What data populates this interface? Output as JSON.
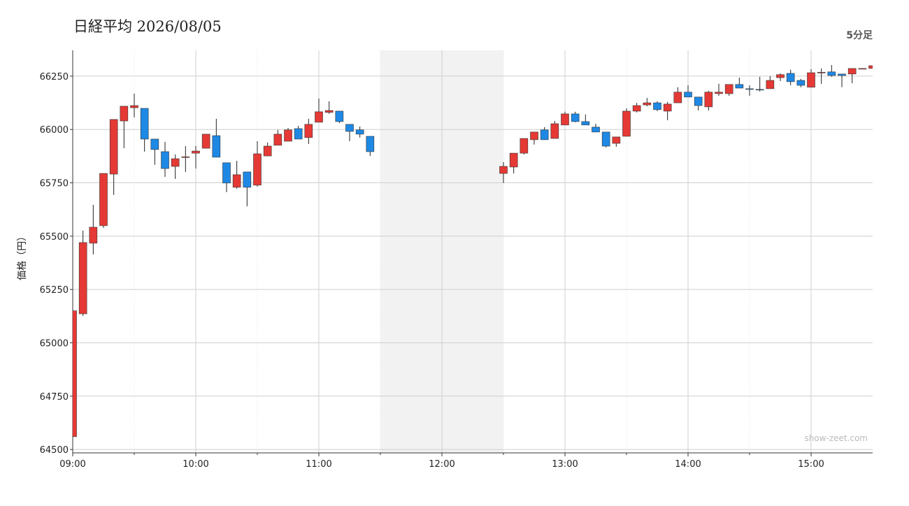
{
  "chart_data": {
    "type": "candlestick",
    "title": "日経平均 2026/08/05",
    "subtitle": "5分足",
    "y_label": "価格（円）",
    "watermark": "show-zeet.com",
    "x": [
      "09:00",
      "09:05",
      "09:10",
      "09:15",
      "09:20",
      "09:25",
      "09:30",
      "09:35",
      "09:40",
      "09:45",
      "09:50",
      "09:55",
      "10:00",
      "10:05",
      "10:10",
      "10:15",
      "10:20",
      "10:25",
      "10:30",
      "10:35",
      "10:40",
      "10:45",
      "10:50",
      "10:55",
      "11:00",
      "11:05",
      "11:10",
      "11:15",
      "11:20",
      "11:25",
      "12:30",
      "12:35",
      "12:40",
      "12:45",
      "12:50",
      "12:55",
      "13:00",
      "13:05",
      "13:10",
      "13:15",
      "13:20",
      "13:25",
      "13:30",
      "13:35",
      "13:40",
      "13:45",
      "13:50",
      "13:55",
      "14:00",
      "14:05",
      "14:10",
      "14:15",
      "14:20",
      "14:25",
      "14:30",
      "14:35",
      "14:40",
      "14:45",
      "14:50",
      "14:55",
      "15:00",
      "15:05",
      "15:10",
      "15:15",
      "15:20",
      "15:25",
      "15:30"
    ],
    "open": [
      64560,
      65136,
      65467,
      65549,
      65791,
      66040,
      66102,
      66099,
      65955,
      65896,
      65827,
      65870,
      65889,
      65912,
      65971,
      65844,
      65729,
      65801,
      65739,
      65876,
      65926,
      65945,
      66004,
      65962,
      66034,
      66080,
      66086,
      66024,
      65998,
      65968,
      65794,
      65824,
      65889,
      65952,
      65998,
      65958,
      66021,
      66073,
      66037,
      66011,
      65988,
      65935,
      65968,
      66086,
      66115,
      66125,
      66086,
      66125,
      66175,
      66152,
      66106,
      66168,
      66168,
      66211,
      66191,
      66188,
      66191,
      66243,
      66263,
      66230,
      66198,
      66266,
      66270,
      66260,
      66260,
      66285,
      66286
    ],
    "high": [
      65150,
      65526,
      65647,
      65794,
      66047,
      66109,
      66168,
      66099,
      65955,
      65942,
      65883,
      65922,
      65922,
      65978,
      66050,
      65844,
      65853,
      65801,
      65945,
      65939,
      65998,
      66007,
      66017,
      66050,
      66145,
      66132,
      66086,
      66024,
      66014,
      65968,
      65847,
      65889,
      65958,
      65988,
      66011,
      66040,
      66083,
      66083,
      66070,
      66027,
      65988,
      65965,
      66099,
      66125,
      66148,
      66132,
      66129,
      66198,
      66207,
      66152,
      66181,
      66214,
      66211,
      66243,
      66207,
      66247,
      66250,
      66263,
      66280,
      66237,
      66283,
      66286,
      66302,
      66260,
      66286,
      66287,
      66299
    ],
    "low": [
      64560,
      65126,
      65414,
      65539,
      65693,
      65912,
      66057,
      65896,
      65834,
      65778,
      65768,
      65801,
      65817,
      65912,
      65870,
      65706,
      65722,
      65640,
      65732,
      65876,
      65926,
      65945,
      65955,
      65932,
      66034,
      66073,
      66030,
      65945,
      65962,
      65876,
      65749,
      65794,
      65883,
      65929,
      65952,
      65958,
      66021,
      66034,
      66021,
      65988,
      65916,
      65919,
      65968,
      66080,
      66109,
      66086,
      66043,
      66125,
      66152,
      66089,
      66089,
      66158,
      66158,
      66194,
      66158,
      66178,
      66191,
      66227,
      66207,
      66198,
      66198,
      66214,
      66247,
      66198,
      66217,
      66284,
      66286
    ],
    "close": [
      65150,
      65470,
      65542,
      65794,
      66047,
      66109,
      66112,
      65955,
      65906,
      65817,
      65863,
      65872,
      65899,
      65978,
      65870,
      65749,
      65788,
      65729,
      65886,
      65922,
      65978,
      65998,
      65955,
      66024,
      66083,
      66089,
      66037,
      65991,
      65978,
      65896,
      65827,
      65889,
      65958,
      65988,
      65952,
      66027,
      66073,
      66037,
      66021,
      65988,
      65922,
      65965,
      66086,
      66112,
      66125,
      66093,
      66119,
      66175,
      66152,
      66112,
      66175,
      66175,
      66211,
      66194,
      66188,
      66186,
      66230,
      66257,
      66224,
      66207,
      66266,
      66268,
      66253,
      66253,
      66286,
      66286,
      66299
    ],
    "colors": {
      "up": "#e53935",
      "down": "#1e88e5"
    },
    "xlim": [
      "09:00",
      "15:30"
    ],
    "xticks": [
      "09:00",
      "10:00",
      "11:00",
      "12:00",
      "13:00",
      "14:00",
      "15:00"
    ],
    "ylim": [
      64484,
      66371
    ],
    "yticks": [
      64500,
      64750,
      65000,
      65250,
      65500,
      65750,
      66000,
      66250
    ],
    "shaded_range": [
      "11:30",
      "12:30"
    ],
    "grid": true
  }
}
